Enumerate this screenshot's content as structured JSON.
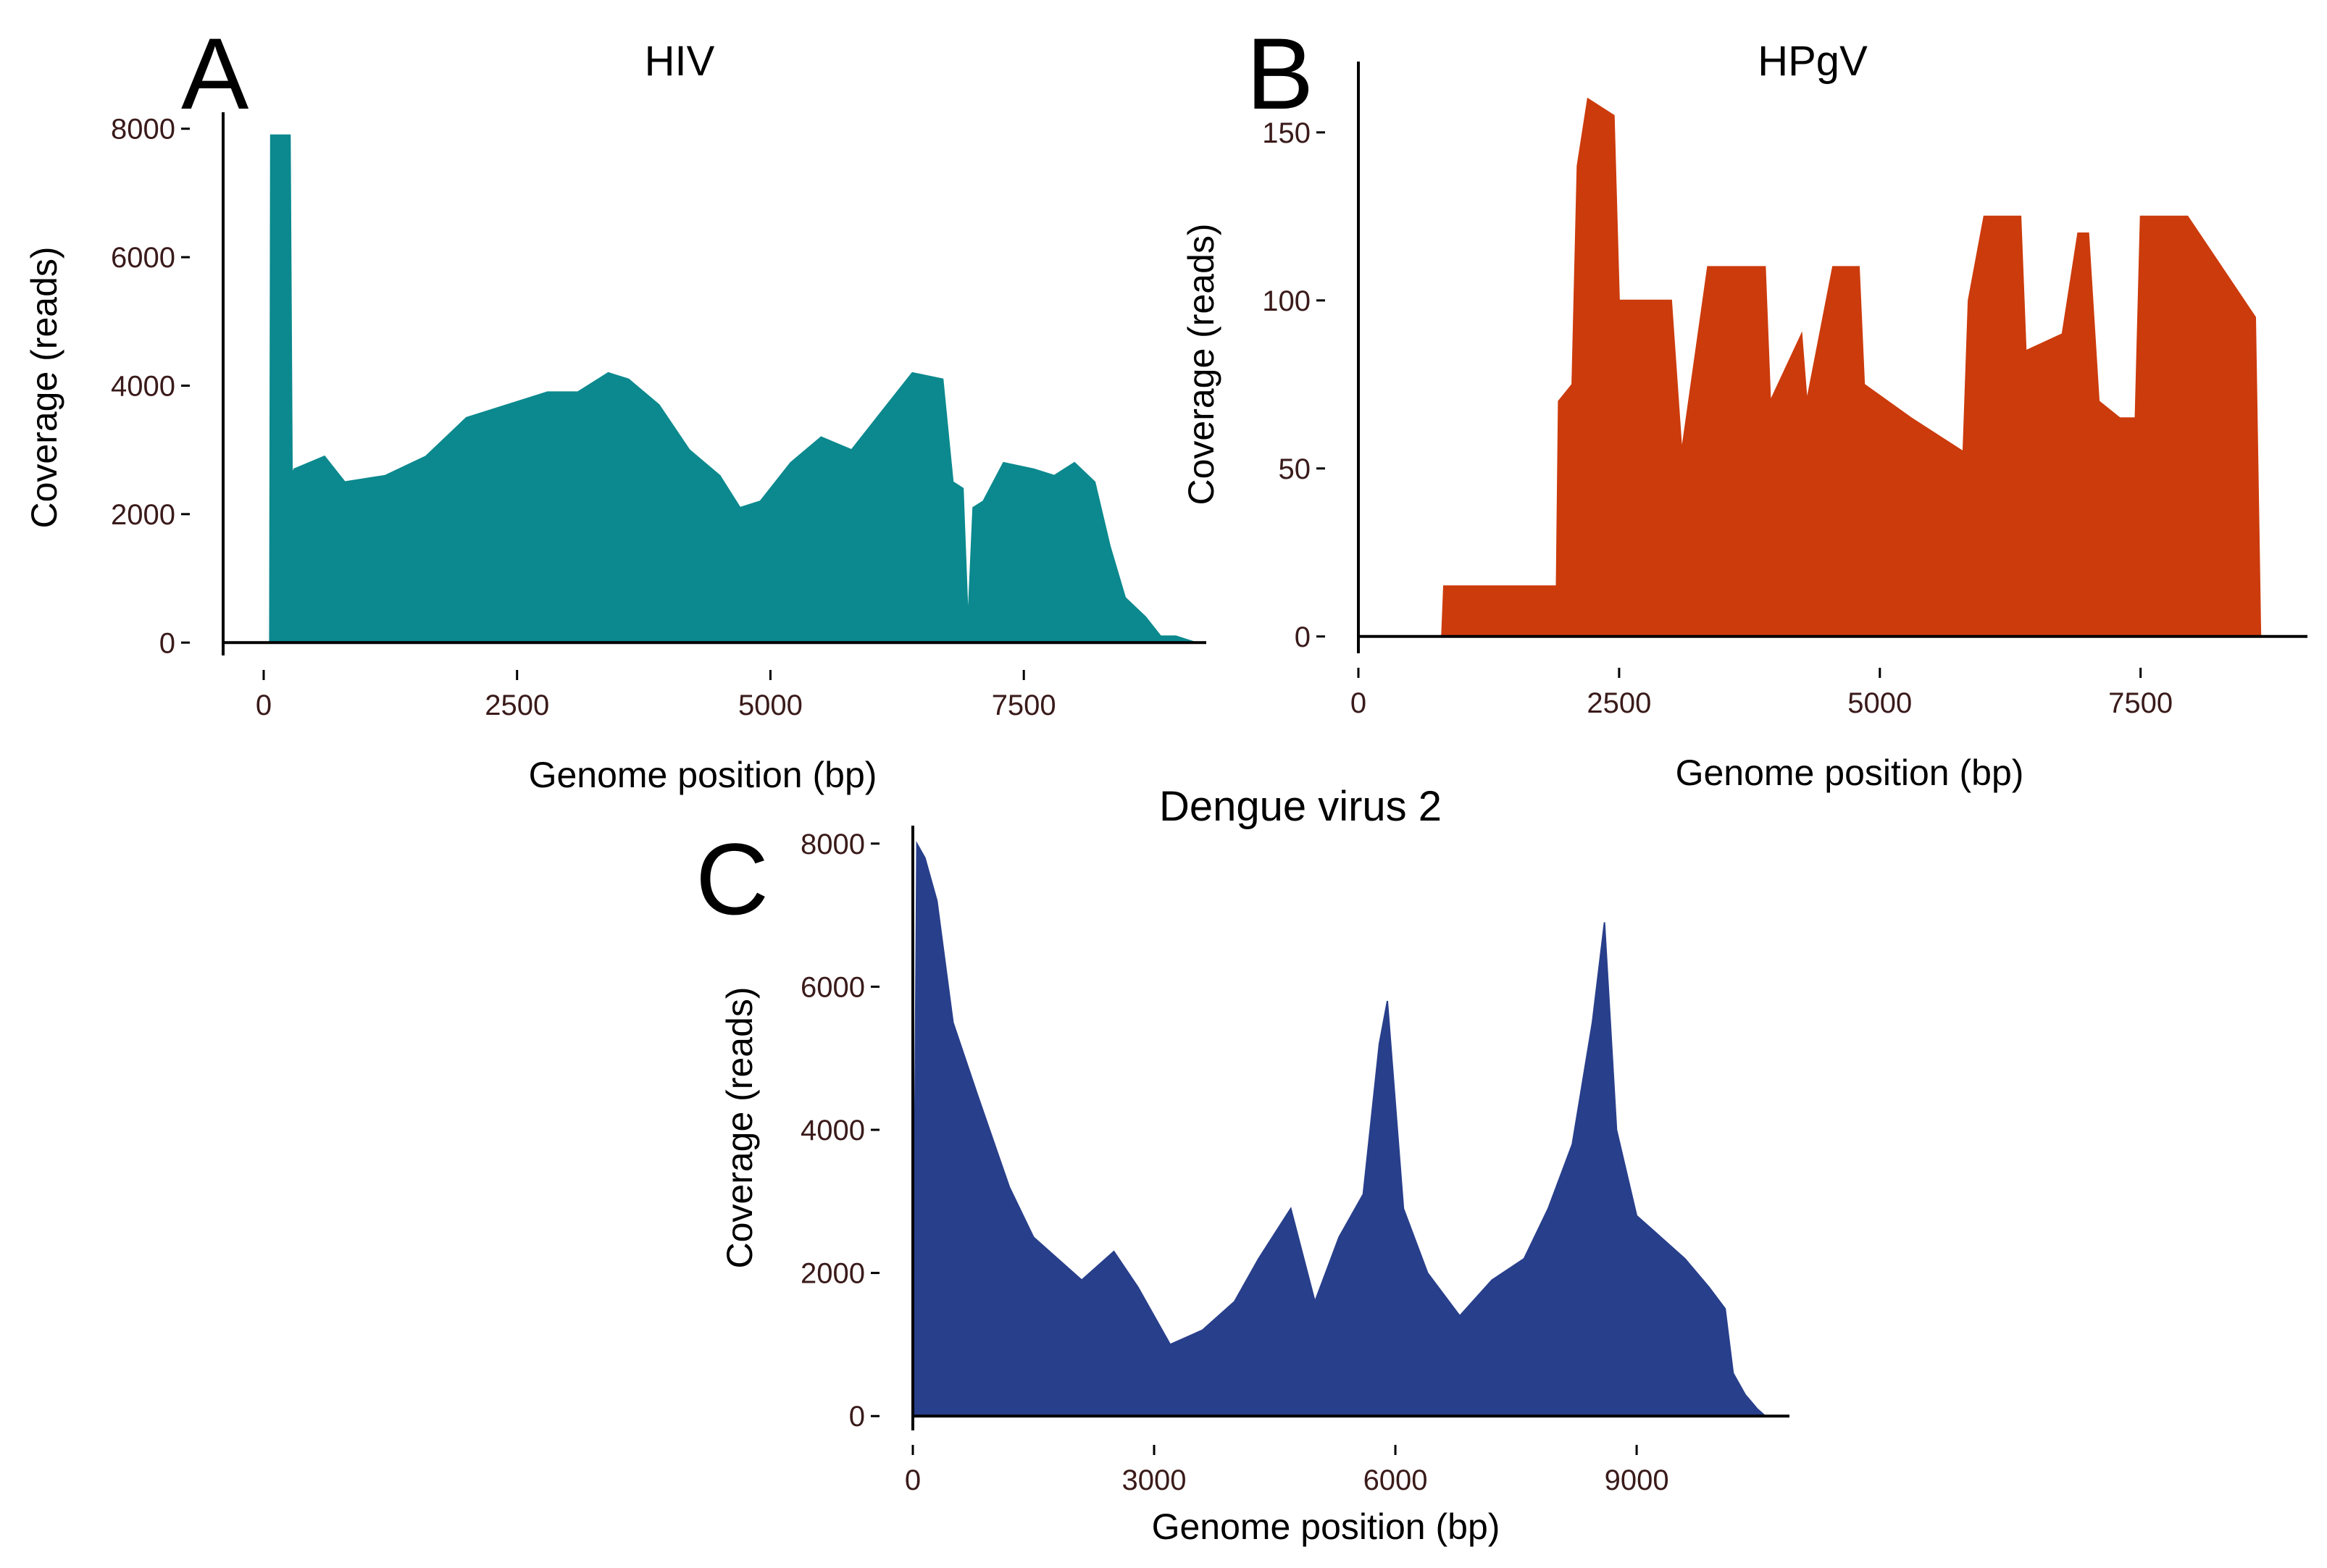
{
  "chart_data": [
    {
      "type": "area",
      "panel": "A",
      "title": "HIV",
      "xlabel": "Genome position (bp)",
      "ylabel": "Coverage (reads)",
      "xlim": [
        -400,
        9300
      ],
      "ylim": [
        -200,
        8200
      ],
      "xticks": [
        0,
        2500,
        5000,
        7500
      ],
      "yticks": [
        0,
        2000,
        4000,
        6000,
        8000
      ],
      "color": "#0b898e",
      "series": [
        {
          "name": "coverage",
          "x": [
            0,
            60,
            70,
            260,
            280,
            300,
            600,
            800,
            1200,
            1600,
            2000,
            2400,
            2800,
            3100,
            3400,
            3600,
            3900,
            4200,
            4500,
            4700,
            4900,
            5200,
            5500,
            5800,
            6100,
            6400,
            6700,
            6800,
            6900,
            6950,
            7000,
            7100,
            7300,
            7600,
            7800,
            8000,
            8200,
            8350,
            8500,
            8700,
            8850,
            9000,
            9200
          ],
          "y": [
            0,
            0,
            7900,
            7900,
            2600,
            2700,
            2900,
            2500,
            2600,
            2900,
            3500,
            3700,
            3900,
            3900,
            4200,
            4100,
            3700,
            3000,
            2600,
            2100,
            2200,
            2800,
            3200,
            3000,
            3600,
            4200,
            4100,
            2500,
            2400,
            300,
            2100,
            2200,
            2800,
            2700,
            2600,
            2800,
            2500,
            1500,
            700,
            400,
            100,
            100,
            0
          ]
        }
      ]
    },
    {
      "type": "area",
      "panel": "B",
      "title": "HPgV",
      "xlabel": "Genome position (bp)",
      "ylabel": "Coverage (reads)",
      "xlim": [
        0,
        9100
      ],
      "ylim": [
        -5,
        170
      ],
      "xticks": [
        0,
        2500,
        5000,
        7500
      ],
      "yticks": [
        0,
        50,
        100,
        150
      ],
      "color": "#cc3b0c",
      "series": [
        {
          "name": "coverage",
          "x": [
            0,
            800,
            820,
            1900,
            1920,
            2050,
            2100,
            2200,
            2450,
            2500,
            3000,
            3100,
            3350,
            3900,
            3950,
            4250,
            4300,
            4550,
            4800,
            4850,
            5300,
            5800,
            5850,
            6000,
            6350,
            6400,
            6750,
            6900,
            7000,
            7100,
            7300,
            7450,
            7500,
            7950,
            8600,
            8650
          ],
          "y": [
            0,
            0,
            15,
            15,
            70,
            75,
            140,
            160,
            155,
            100,
            100,
            55,
            110,
            110,
            70,
            90,
            70,
            110,
            110,
            75,
            65,
            55,
            100,
            125,
            125,
            85,
            90,
            120,
            120,
            70,
            65,
            65,
            125,
            125,
            95,
            0
          ]
        }
      ]
    },
    {
      "type": "area",
      "panel": "C",
      "title": "Dengue virus 2",
      "xlabel": "Genome position (bp)",
      "ylabel": "Coverage (reads)",
      "xlim": [
        0,
        10900
      ],
      "ylim": [
        -200,
        8200
      ],
      "xticks": [
        0,
        3000,
        6000,
        9000
      ],
      "yticks": [
        0,
        2000,
        4000,
        6000,
        8000
      ],
      "color": "#283f8b",
      "series": [
        {
          "name": "coverage",
          "x": [
            0,
            50,
            150,
            300,
            500,
            800,
            1200,
            1500,
            1800,
            2100,
            2500,
            2800,
            3200,
            3600,
            4000,
            4300,
            4700,
            5000,
            5300,
            5600,
            5800,
            5900,
            6100,
            6400,
            6800,
            7200,
            7600,
            7900,
            8200,
            8450,
            8600,
            8750,
            9000,
            9300,
            9600,
            9900,
            10100,
            10200,
            10350,
            10500,
            10600
          ],
          "y": [
            0,
            8000,
            7800,
            7200,
            5500,
            4500,
            3200,
            2500,
            2200,
            1900,
            2300,
            1800,
            1000,
            1200,
            1600,
            2200,
            2900,
            1600,
            2500,
            3100,
            5200,
            5800,
            2900,
            2000,
            1400,
            1900,
            2200,
            2900,
            3800,
            5500,
            6900,
            4000,
            2800,
            2500,
            2200,
            1800,
            1500,
            600,
            300,
            100,
            0
          ]
        }
      ]
    }
  ]
}
